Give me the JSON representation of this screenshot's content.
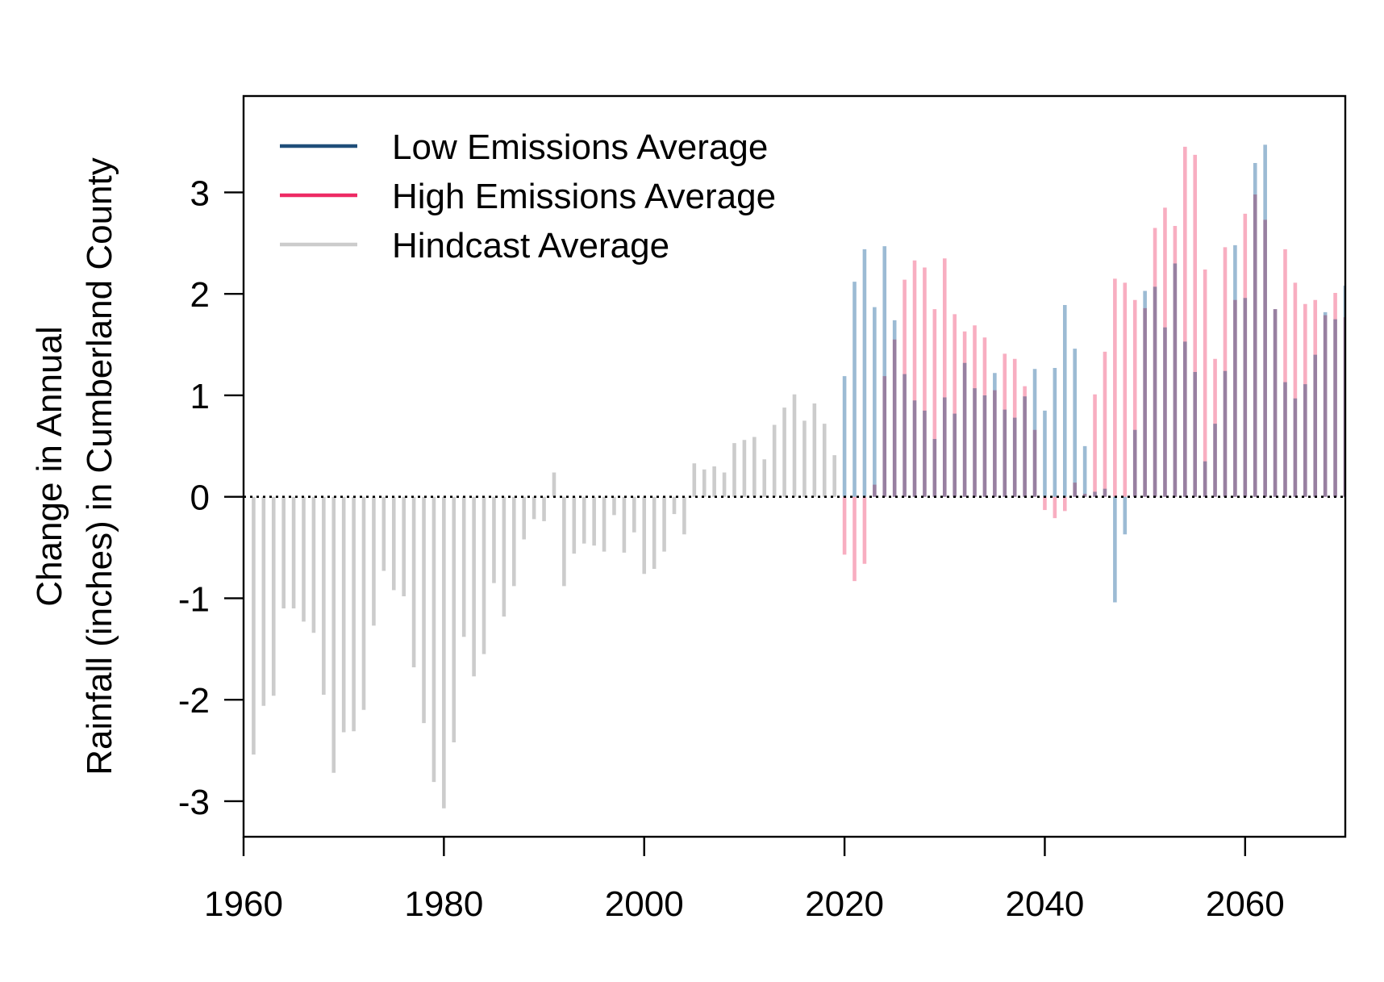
{
  "chart_data": {
    "type": "bar",
    "title": "",
    "xlabel": "",
    "ylabel": [
      "Change in Annual",
      "Rainfall (inches) in Cumberland County"
    ],
    "xlim": [
      1960,
      2070
    ],
    "ylim": [
      -3.35,
      3.95
    ],
    "x_ticks": [
      "1960",
      "1980",
      "2000",
      "2020",
      "2040",
      "2060"
    ],
    "y_ticks": [
      "-3",
      "-2",
      "-1",
      "0",
      "1",
      "2",
      "3"
    ],
    "grid": false,
    "zero_line": true,
    "legend_position": "top-left",
    "legend": [
      {
        "label": "Low Emissions Average",
        "color": "#1f4e79"
      },
      {
        "label": "High Emissions Average",
        "color": "#ee2a64"
      },
      {
        "label": "Hindcast Average",
        "color": "#cccccc"
      }
    ],
    "series": [
      {
        "name": "Hindcast Average",
        "color": "#cccccc",
        "x": [
          1961,
          1962,
          1963,
          1964,
          1965,
          1966,
          1967,
          1968,
          1969,
          1970,
          1971,
          1972,
          1973,
          1974,
          1975,
          1976,
          1977,
          1978,
          1979,
          1980,
          1981,
          1982,
          1983,
          1984,
          1985,
          1986,
          1987,
          1988,
          1989,
          1990,
          1991,
          1992,
          1993,
          1994,
          1995,
          1996,
          1997,
          1998,
          1999,
          2000,
          2001,
          2002,
          2003,
          2004,
          2005,
          2006,
          2007,
          2008,
          2009,
          2010,
          2011,
          2012,
          2013,
          2014,
          2015,
          2016,
          2017,
          2018,
          2019
        ],
        "values": [
          -2.54,
          -2.06,
          -1.96,
          -1.1,
          -1.1,
          -1.23,
          -1.34,
          -1.95,
          -2.72,
          -2.32,
          -2.31,
          -2.1,
          -1.27,
          -0.73,
          -0.92,
          -0.98,
          -1.68,
          -2.23,
          -2.81,
          -3.07,
          -2.42,
          -1.38,
          -1.77,
          -1.55,
          -0.85,
          -1.18,
          -0.88,
          -0.42,
          -0.22,
          -0.24,
          0.24,
          -0.88,
          -0.56,
          -0.46,
          -0.48,
          -0.54,
          -0.18,
          -0.55,
          -0.35,
          -0.76,
          -0.71,
          -0.54,
          -0.17,
          -0.37,
          0.33,
          0.27,
          0.3,
          0.24,
          0.53,
          0.56,
          0.59,
          0.37,
          0.71,
          0.88,
          1.01,
          0.75,
          0.92,
          0.72,
          0.41
        ]
      },
      {
        "name": "Low Emissions Average",
        "color": "#8bafcc",
        "x": [
          2020,
          2021,
          2022,
          2023,
          2024,
          2025,
          2026,
          2027,
          2028,
          2029,
          2030,
          2031,
          2032,
          2033,
          2034,
          2035,
          2036,
          2037,
          2038,
          2039,
          2040,
          2041,
          2042,
          2043,
          2044,
          2045,
          2046,
          2047,
          2048,
          2049,
          2050,
          2051,
          2052,
          2053,
          2054,
          2055,
          2056,
          2057,
          2058,
          2059,
          2060,
          2061,
          2062,
          2063,
          2064,
          2065,
          2066,
          2067,
          2068,
          2069,
          2070
        ],
        "values": [
          1.19,
          2.12,
          2.44,
          1.87,
          2.47,
          1.74,
          1.21,
          0.95,
          0.85,
          0.57,
          0.98,
          0.82,
          1.32,
          1.07,
          1.0,
          1.22,
          0.86,
          0.78,
          0.99,
          1.26,
          0.85,
          1.27,
          1.89,
          1.46,
          0.5,
          0.05,
          0.08,
          -1.04,
          -0.37,
          0.66,
          2.03,
          2.07,
          1.67,
          2.3,
          1.53,
          1.23,
          0.35,
          0.72,
          1.24,
          2.48,
          1.96,
          3.29,
          3.47,
          1.85,
          1.13,
          0.97,
          1.11,
          1.4,
          1.82,
          1.75,
          2.08
        ]
      },
      {
        "name": "High Emissions Average",
        "color": "#f7a0b6",
        "x": [
          2020,
          2021,
          2022,
          2023,
          2024,
          2025,
          2026,
          2027,
          2028,
          2029,
          2030,
          2031,
          2032,
          2033,
          2034,
          2035,
          2036,
          2037,
          2038,
          2039,
          2040,
          2041,
          2042,
          2043,
          2044,
          2045,
          2046,
          2047,
          2048,
          2049,
          2050,
          2051,
          2052,
          2053,
          2054,
          2055,
          2056,
          2057,
          2058,
          2059,
          2060,
          2061,
          2062,
          2063,
          2064,
          2065,
          2066,
          2067,
          2068,
          2069,
          2070
        ],
        "values": [
          -0.57,
          -0.83,
          -0.66,
          0.12,
          1.19,
          1.55,
          2.14,
          2.33,
          2.26,
          1.85,
          2.35,
          1.8,
          1.63,
          1.69,
          1.57,
          1.05,
          1.41,
          1.36,
          1.09,
          0.66,
          -0.13,
          -0.21,
          -0.14,
          0.14,
          0.03,
          1.01,
          1.43,
          2.15,
          2.11,
          1.94,
          1.86,
          2.65,
          2.85,
          2.67,
          3.45,
          3.37,
          2.24,
          1.36,
          2.46,
          1.94,
          2.79,
          2.98,
          2.73,
          1.85,
          2.44,
          2.11,
          1.9,
          1.94,
          1.79,
          2.01,
          1.77
        ]
      }
    ]
  }
}
